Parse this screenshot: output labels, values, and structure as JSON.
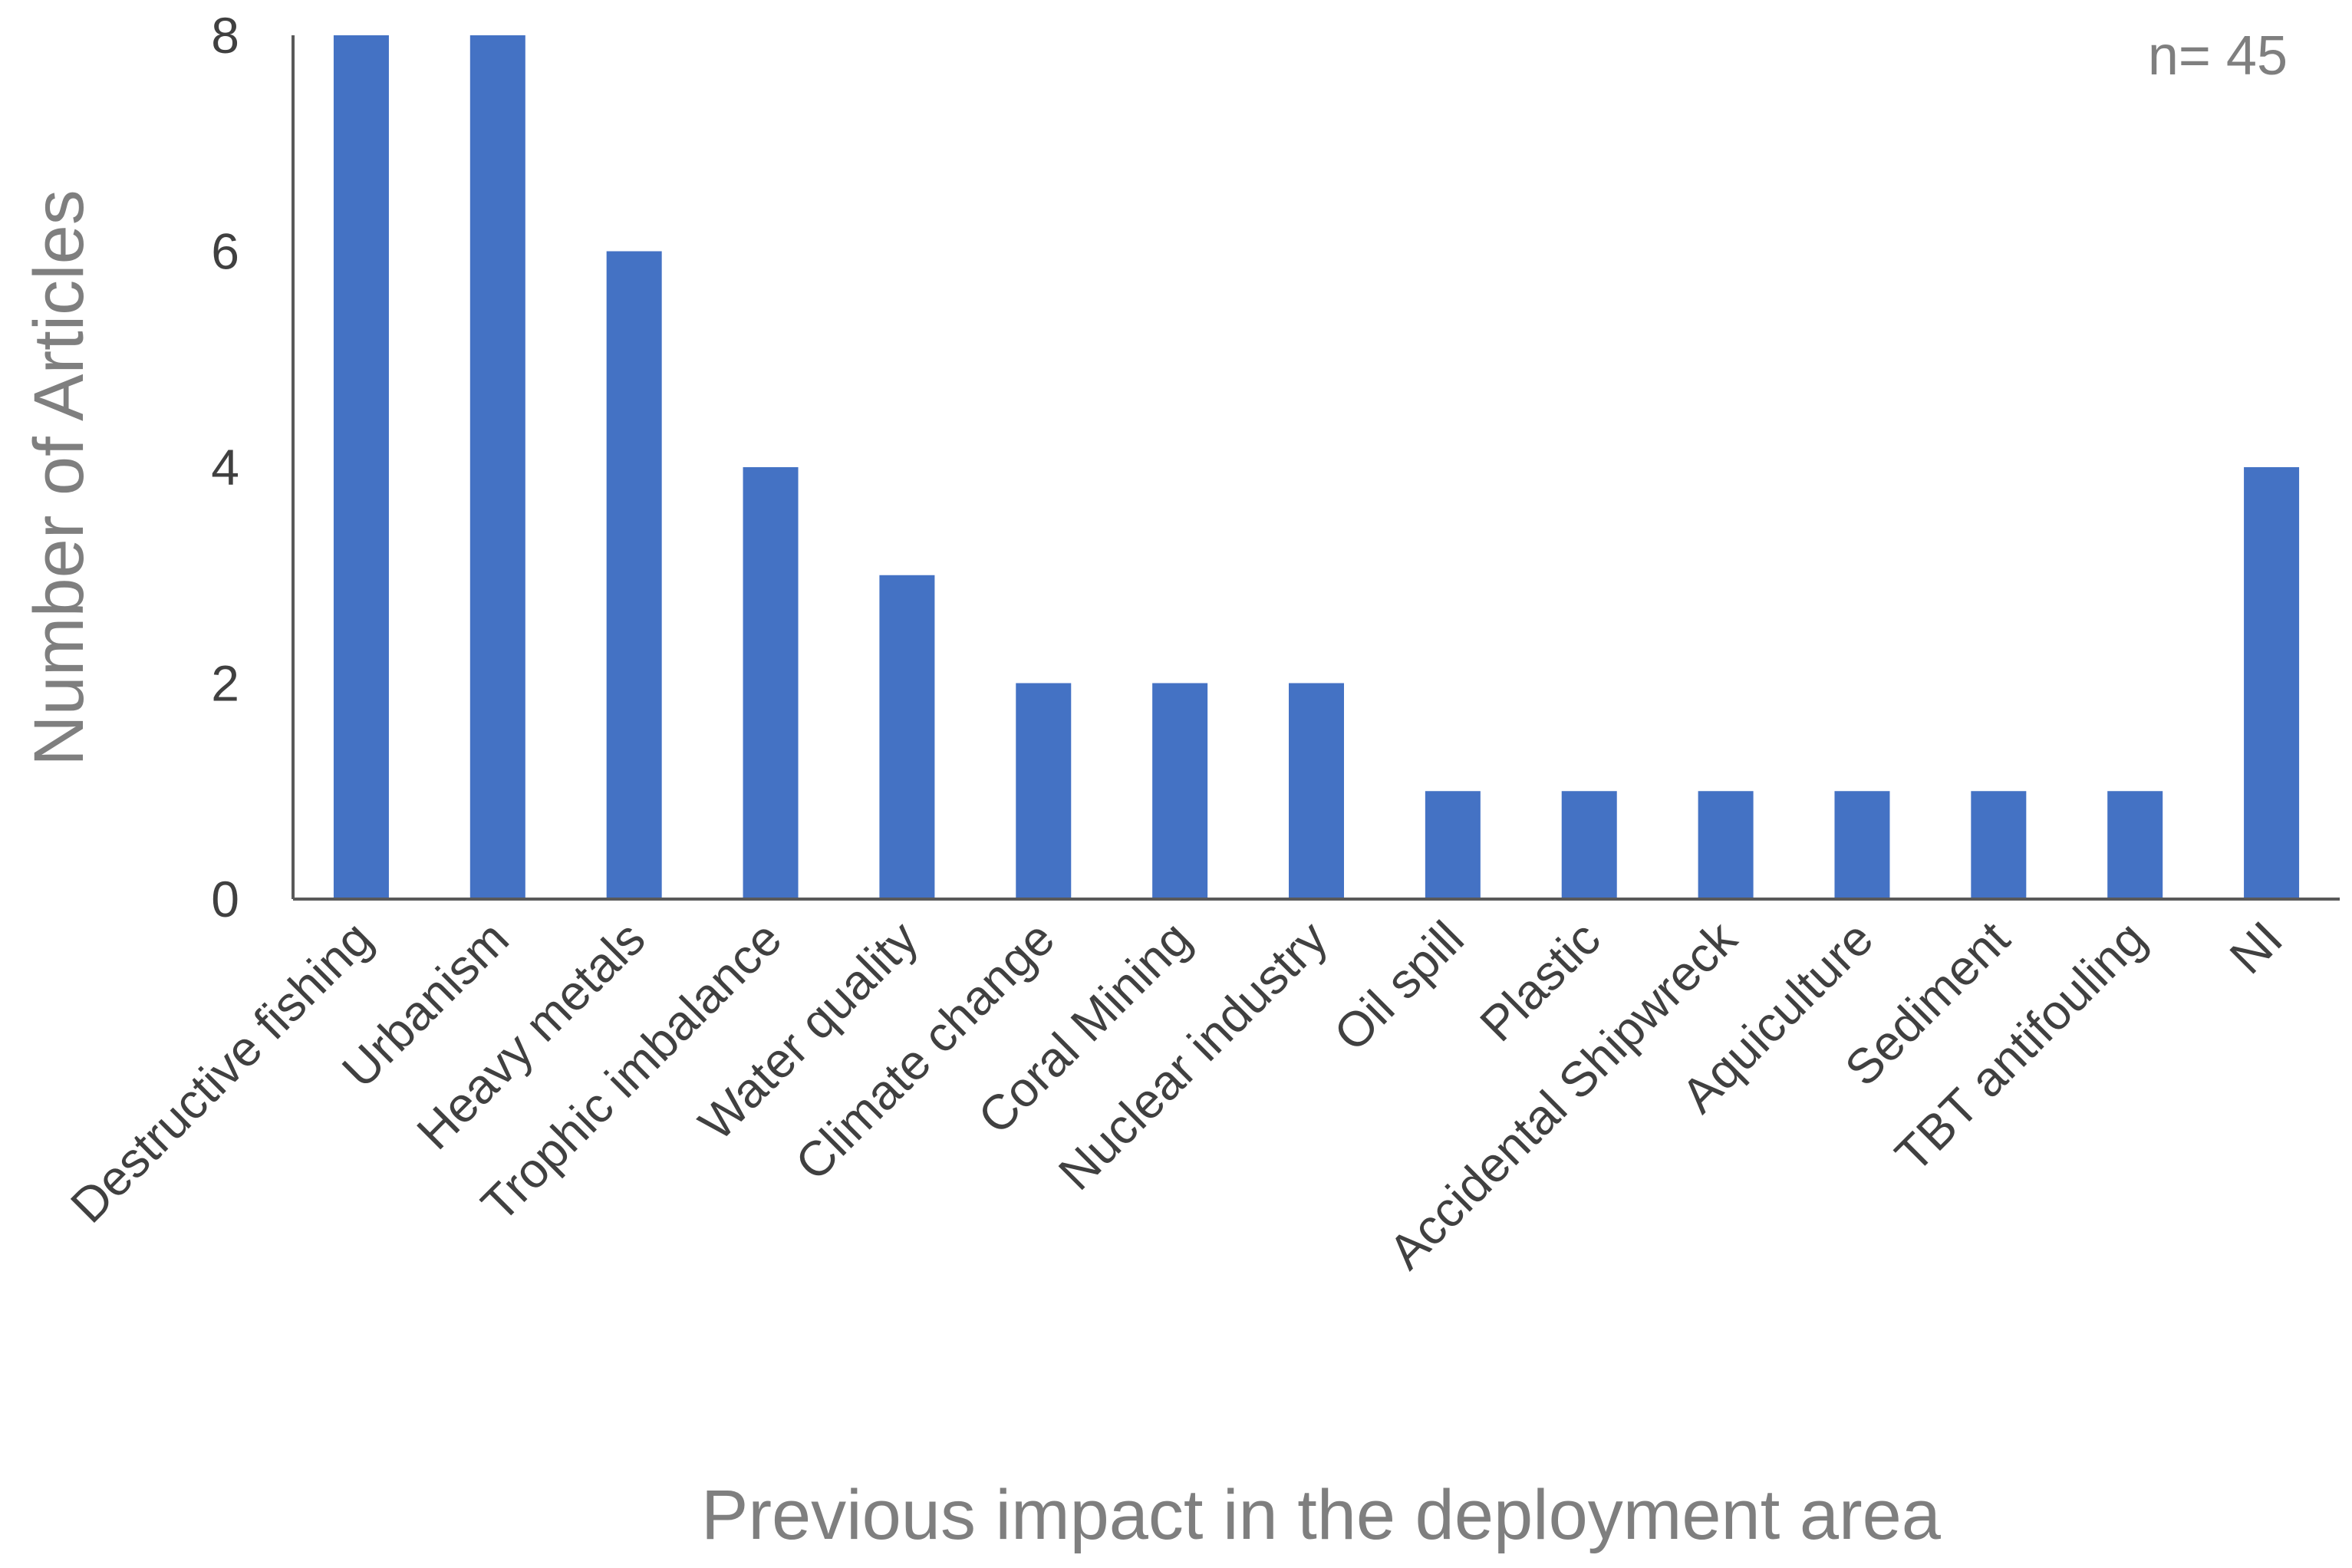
{
  "chart_data": {
    "type": "bar",
    "title": "",
    "xlabel": "Previous impact in the deployment area",
    "ylabel": "Number of Articles",
    "annotation": "n= 45",
    "categories": [
      "Destructive fishing",
      "Urbanism",
      "Heavy metals",
      "Trophic imbalance",
      "Water quality",
      "Climate change",
      "Coral Mining",
      "Nuclear industry",
      "Oil spill",
      "Plastic",
      "Accidental Shipwreck",
      "Aquiculture",
      "Sediment",
      "TBT antifouling",
      "NI"
    ],
    "values": [
      8,
      8,
      6,
      4,
      3,
      2,
      2,
      2,
      1,
      1,
      1,
      1,
      1,
      1,
      4
    ],
    "ylim": [
      0,
      8
    ],
    "yticks": [
      "0",
      "2",
      "4",
      "6",
      "8"
    ],
    "grid": false,
    "legend": "none",
    "colors": {
      "bar": "#4472C4",
      "axis": "#595959",
      "text": "#404040",
      "label": "#7f7f7f"
    }
  }
}
